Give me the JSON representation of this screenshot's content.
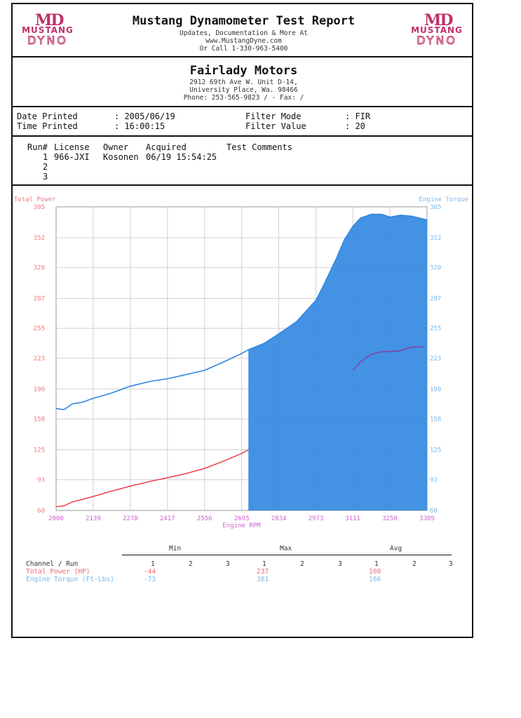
{
  "header": {
    "left_logo": {
      "md": "MD",
      "mustang": "MUSTANG",
      "dyno": "DYNO"
    },
    "right_logo": {
      "md": "MD",
      "mustang": "MUSTANG",
      "dyno": "DYNO"
    },
    "title": "Mustang Dynamometer Test Report",
    "line1": "Updates, Documentation & More At",
    "line2": "www.MustangDyne.com",
    "line3": "Or Call 1-330-963-5400"
  },
  "shop": {
    "name": "Fairlady Motors",
    "address1": "2912 69th Ave W. Unit D-14,",
    "address2": "University Place, Wa.  98466",
    "phone": "Phone: 253-565-9823 /  - Fax:  /"
  },
  "info": {
    "date_label": "Date Printed",
    "date_value": ": 2005/06/19",
    "time_label": "Time Printed",
    "time_value": ": 16:00:15",
    "filter_mode_label": "Filter Mode",
    "filter_mode_value": ":  FIR",
    "filter_value_label": "Filter Value",
    "filter_value_value": ":  20"
  },
  "runs": {
    "headers": {
      "run": "Run#",
      "license": "License",
      "owner": "Owner",
      "acquired": "Acquired",
      "comments": "Test Comments"
    },
    "rows": [
      {
        "run": "1",
        "license": "966-JXI",
        "owner": "Kosonen",
        "acquired": "06/19 15:54:25"
      },
      {
        "run": "2",
        "license": "",
        "owner": "",
        "acquired": ""
      },
      {
        "run": "3",
        "license": "",
        "owner": "",
        "acquired": ""
      }
    ]
  },
  "chart_data": {
    "type": "line",
    "left_axis_label": "Total Power",
    "right_axis_label": "Engine Torque",
    "xlabel": "Engine RPM",
    "x_ticks": [
      "2000",
      "2139",
      "2278",
      "2417",
      "2556",
      "2695",
      "2834",
      "2973",
      "3111",
      "3250",
      "3389"
    ],
    "y_ticks": [
      "60",
      "93",
      "125",
      "158",
      "190",
      "223",
      "255",
      "287",
      "320",
      "352",
      "385"
    ],
    "xlim": [
      2000,
      3389
    ],
    "ylim": [
      60,
      385
    ],
    "grid": true,
    "colors": {
      "power": "#e8343c",
      "torque": "#2f86e0",
      "x_ticks": "#d060d0",
      "frame": "#999999",
      "grid": "#cfcfcf"
    },
    "series": [
      {
        "name": "Total Power",
        "x": [
          2000,
          2030,
          2060,
          2100,
          2139,
          2200,
          2278,
          2350,
          2417,
          2480,
          2556,
          2620,
          2695,
          2720
        ],
        "y": [
          64,
          65,
          69,
          72,
          75,
          80,
          86,
          91,
          95,
          99,
          105,
          112,
          121,
          125
        ]
      },
      {
        "name": "Engine Torque",
        "x": [
          2000,
          2030,
          2060,
          2100,
          2139,
          2200,
          2278,
          2350,
          2417,
          2480,
          2556,
          2620,
          2695,
          2720,
          2780,
          2834,
          2900,
          2973,
          3000,
          3050,
          3080,
          3111,
          3140,
          3180,
          3220,
          3250,
          3290,
          3330,
          3360,
          3389
        ],
        "y": [
          169,
          168,
          174,
          176,
          180,
          185,
          193,
          198,
          201,
          205,
          210,
          218,
          228,
          232,
          239,
          249,
          262,
          285,
          300,
          330,
          350,
          364,
          373,
          377,
          377,
          374,
          376,
          375,
          373,
          371
        ]
      }
    ],
    "fill_start_x": 2720,
    "power_overlay": {
      "x": [
        3111,
        3140,
        3180,
        3220,
        3250,
        3290,
        3330,
        3360,
        3380
      ],
      "y": [
        210,
        219,
        227,
        230,
        230,
        231,
        235,
        235,
        235
      ]
    }
  },
  "summary": {
    "groups": [
      "Min",
      "Max",
      "Avg"
    ],
    "run_numbers": [
      "1",
      "2",
      "3"
    ],
    "header_label": "Channel / Run",
    "rows": [
      {
        "channel": "Total Power (HP)",
        "min": "-44",
        "max": "237",
        "avg": "100"
      },
      {
        "channel": "Engine Torque (Ft-Lbs)",
        "min": "-73",
        "max": "381",
        "avg": "166"
      }
    ]
  }
}
